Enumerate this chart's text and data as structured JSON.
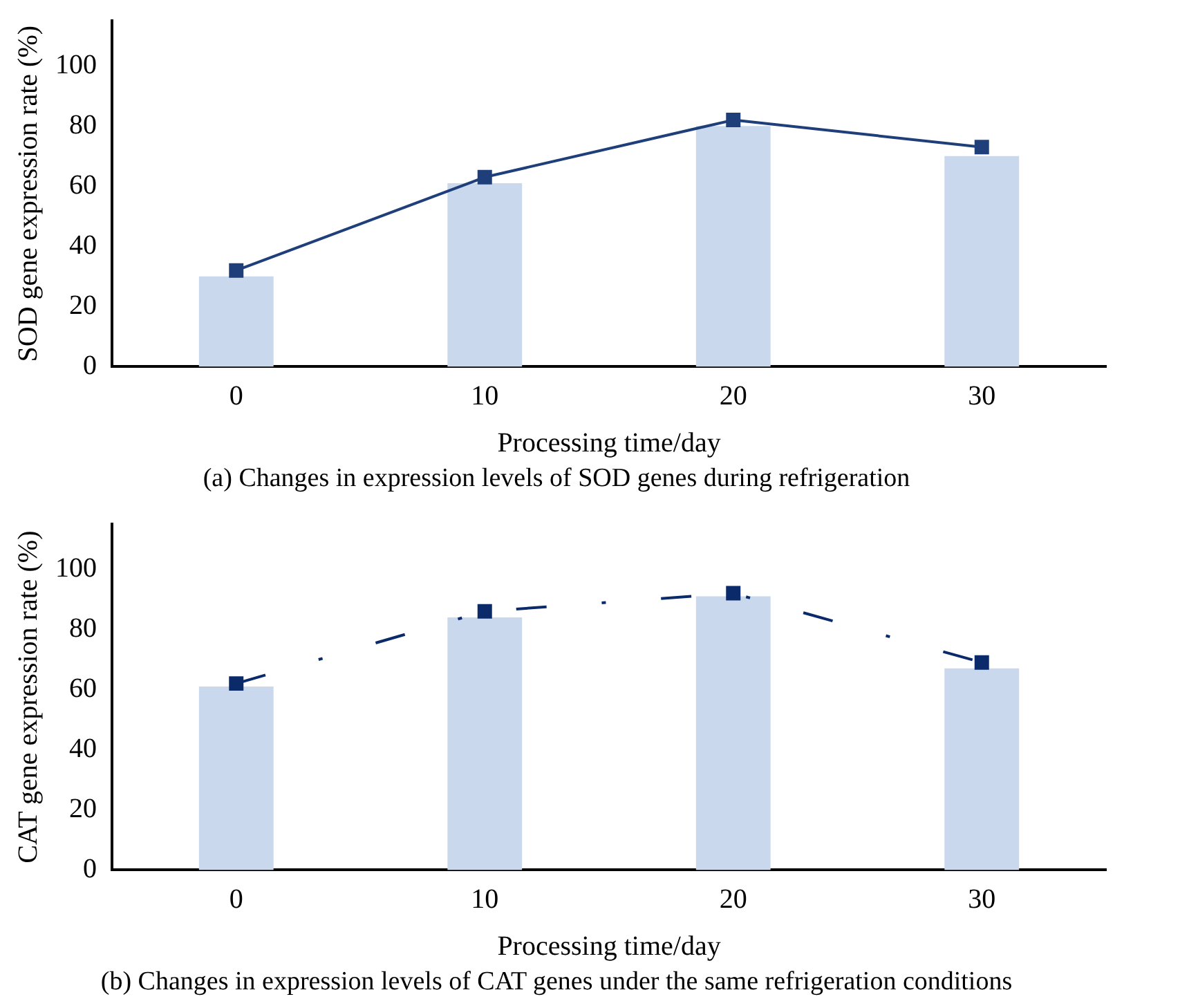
{
  "chart_data": [
    {
      "type": "bar",
      "title": "(a) Changes in expression levels of SOD genes during refrigeration",
      "xlabel": "Processing time/day",
      "ylabel": "SOD gene expression rate (%)",
      "categories": [
        "0",
        "10",
        "20",
        "30"
      ],
      "ylim": [
        0,
        115
      ],
      "yticks": [
        0,
        20,
        40,
        60,
        80,
        100
      ],
      "grid": false,
      "legend": false,
      "series": [
        {
          "color": "#c9d8ec",
          "values": [
            30,
            61,
            80,
            70
          ]
        },
        {
          "type": "line",
          "color": "#1f3f7a",
          "marker": "square",
          "line_style": "solid",
          "values": [
            32,
            63,
            82,
            73
          ]
        }
      ]
    },
    {
      "type": "bar",
      "title": "(b) Changes in expression levels of CAT genes under the same refrigeration conditions",
      "xlabel": "Processing time/day",
      "ylabel": "CAT gene expression rate (%)",
      "categories": [
        "0",
        "10",
        "20",
        "30"
      ],
      "ylim": [
        0,
        115
      ],
      "yticks": [
        0,
        20,
        40,
        60,
        80,
        100
      ],
      "grid": false,
      "legend": false,
      "series": [
        {
          "color": "#c9d8ec",
          "values": [
            61,
            84,
            91,
            67
          ]
        },
        {
          "type": "line",
          "color": "#0a2a6a",
          "marker": "square",
          "line_style": "dashed",
          "values": [
            62,
            86,
            92,
            69
          ]
        }
      ]
    }
  ]
}
